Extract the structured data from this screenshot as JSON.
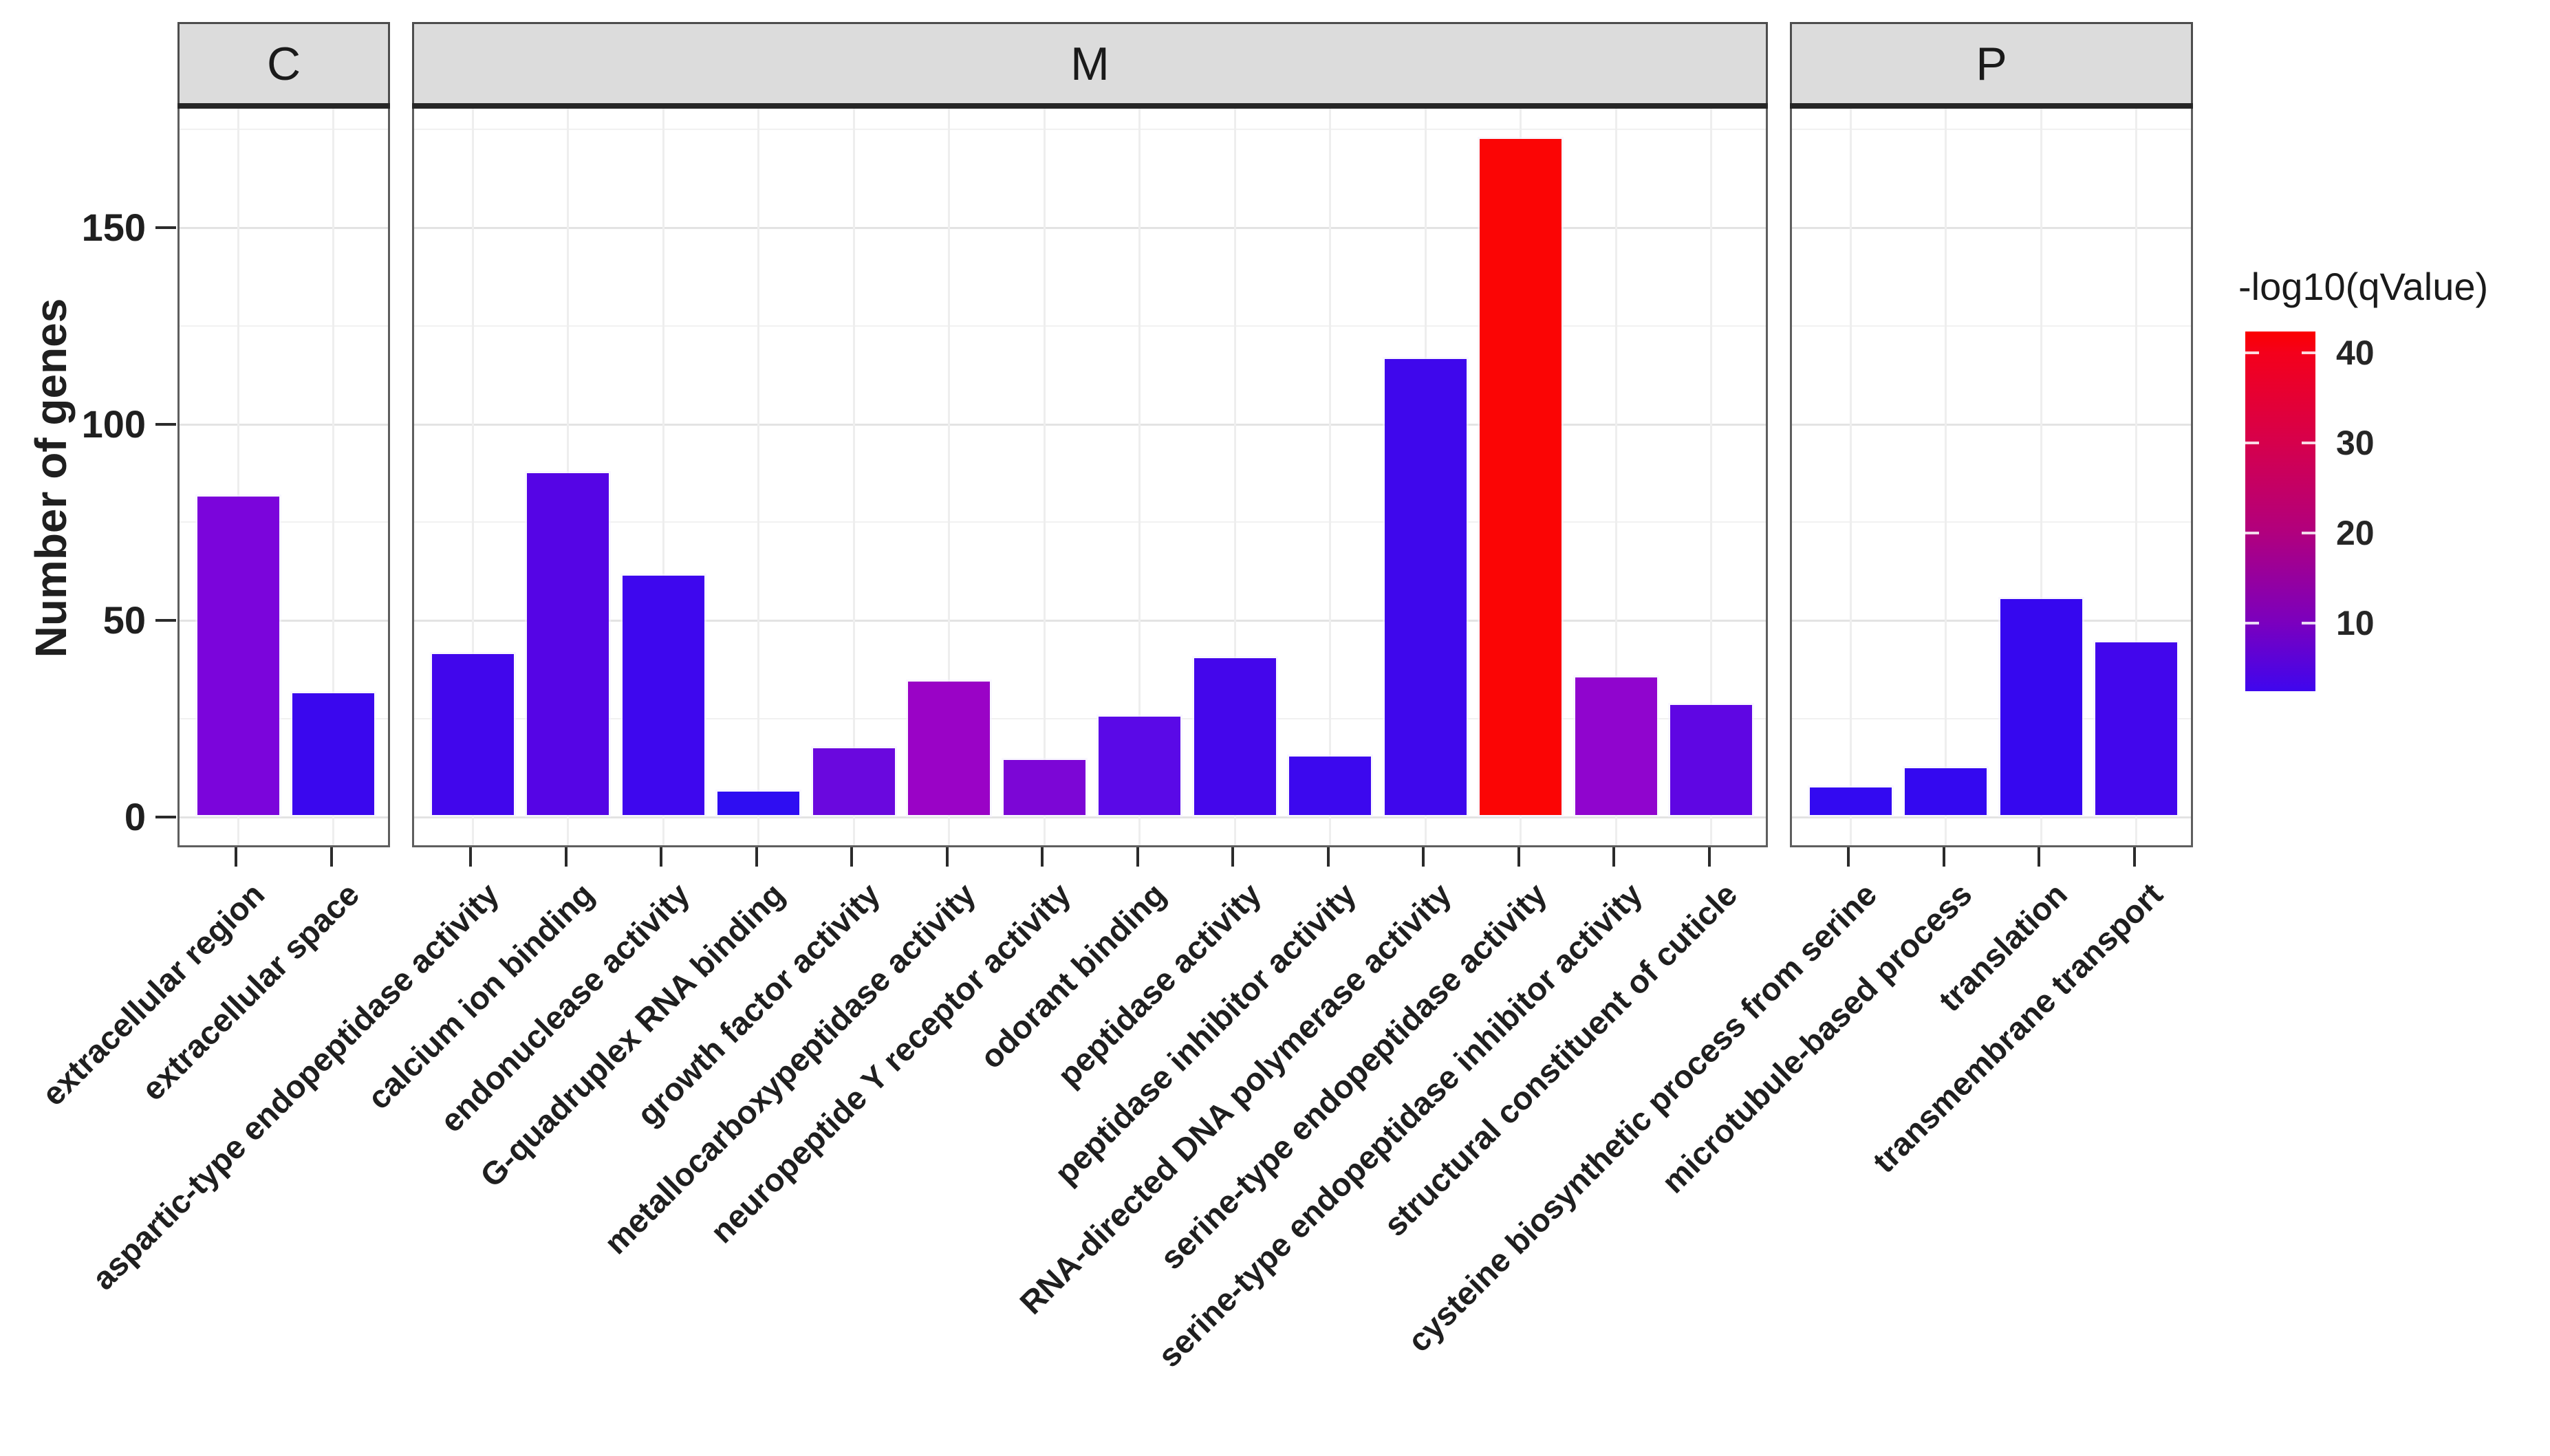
{
  "figure": {
    "background": "#ffffff",
    "y_axis_title": "Number of genes",
    "facet_labels": [
      "C",
      "M",
      "P"
    ],
    "legend_title": "-log10(qValue)",
    "legend_tick_labels": [
      "40",
      "30",
      "20",
      "10"
    ]
  },
  "colors": {
    "strip_fill": "#dcdcdc",
    "strip_border": "#4d4d4d",
    "panel_border": "#5e5e5e",
    "heavy_strip_underline": "#262626",
    "gridline_major": "#e3e3e3",
    "gridline_minor": "#f1f1f1",
    "gridline_vertical": "#eeeeee",
    "axis_text": "#1f1f1f",
    "tick_mark": "#2b2b2b"
  },
  "chart_data": {
    "type": "bar",
    "faceted": true,
    "title": "",
    "xlabel": "",
    "ylabel": "Number of genes",
    "y_ticks": [
      0,
      50,
      100,
      150
    ],
    "y_minor_step": 25,
    "y_gridline_values": [
      0,
      25,
      50,
      75,
      100,
      125,
      150,
      175
    ],
    "ylim_display": [
      -7.7,
      178
    ],
    "grid": true,
    "legend": {
      "title": "-log10(qValue)",
      "ticks": [
        40,
        30,
        20,
        10
      ],
      "scale_top_value": 42.4,
      "scale_bottom_value": 2.4,
      "low_color": "#3f06ee",
      "high_color": "#fb0000",
      "gradient_stops": [
        {
          "pos": 0,
          "color": "#fb0000"
        },
        {
          "pos": 5.9,
          "color": "#f4001b"
        },
        {
          "pos": 30.9,
          "color": "#d6004c"
        },
        {
          "pos": 55.9,
          "color": "#b1007e"
        },
        {
          "pos": 80.9,
          "color": "#7b00be"
        },
        {
          "pos": 100,
          "color": "#3f06ee"
        }
      ],
      "position": "right"
    },
    "facets": [
      {
        "label": "C",
        "bars": [
          {
            "category": "extracellular region",
            "value": 82,
            "fill": "#7b05db",
            "neg_log10_qvalue_est": 10.5
          },
          {
            "category": "extracellular space",
            "value": 32,
            "fill": "#3a07ee",
            "neg_log10_qvalue_est": 3.2
          }
        ]
      },
      {
        "label": "M",
        "bars": [
          {
            "category": "aspartic-type endopeptidase activity",
            "value": 42,
            "fill": "#4106ec",
            "neg_log10_qvalue_est": 4.2
          },
          {
            "category": "calcium ion binding",
            "value": 88,
            "fill": "#5505e5",
            "neg_log10_qvalue_est": 6.0
          },
          {
            "category": "endonuclease activity",
            "value": 62,
            "fill": "#3e07ee",
            "neg_log10_qvalue_est": 3.5
          },
          {
            "category": "G-quadruplex RNA binding",
            "value": 7,
            "fill": "#2f0df2",
            "neg_log10_qvalue_est": 2.4
          },
          {
            "category": "growth factor activity",
            "value": 18,
            "fill": "#6a08de",
            "neg_log10_qvalue_est": 8.0
          },
          {
            "category": "metallocarboxypeptidase activity",
            "value": 35,
            "fill": "#9a03c6",
            "neg_log10_qvalue_est": 15.5
          },
          {
            "category": "neuropeptide Y receptor activity",
            "value": 15,
            "fill": "#7c06d6",
            "neg_log10_qvalue_est": 10.5
          },
          {
            "category": "odorant binding",
            "value": 26,
            "fill": "#5a09e7",
            "neg_log10_qvalue_est": 6.5
          },
          {
            "category": "peptidase activity",
            "value": 41,
            "fill": "#4406eb",
            "neg_log10_qvalue_est": 4.3
          },
          {
            "category": "peptidase inhibitor activity",
            "value": 16,
            "fill": "#3c08ee",
            "neg_log10_qvalue_est": 3.2
          },
          {
            "category": "RNA-directed DNA polymerase activity",
            "value": 117,
            "fill": "#3f07ec",
            "neg_log10_qvalue_est": 3.7
          },
          {
            "category": "serine-type endopeptidase activity",
            "value": 173,
            "fill": "#fb0505",
            "neg_log10_qvalue_est": 42.0
          },
          {
            "category": "serine-type endopeptidase inhibitor activity",
            "value": 36,
            "fill": "#9005ce",
            "neg_log10_qvalue_est": 13.5
          },
          {
            "category": "structural constituent of cuticle",
            "value": 29,
            "fill": "#5f06e3",
            "neg_log10_qvalue_est": 7.0
          }
        ]
      },
      {
        "label": "P",
        "bars": [
          {
            "category": "cysteine biosynthetic process from serine",
            "value": 8,
            "fill": "#3309f1",
            "neg_log10_qvalue_est": 2.5
          },
          {
            "category": "microtubule-based process",
            "value": 13,
            "fill": "#3408f0",
            "neg_log10_qvalue_est": 2.6
          },
          {
            "category": "translation",
            "value": 56,
            "fill": "#3607ef",
            "neg_log10_qvalue_est": 2.8
          },
          {
            "category": "transmembrane transport",
            "value": 45,
            "fill": "#4206ec",
            "neg_log10_qvalue_est": 4.0
          }
        ]
      }
    ]
  }
}
